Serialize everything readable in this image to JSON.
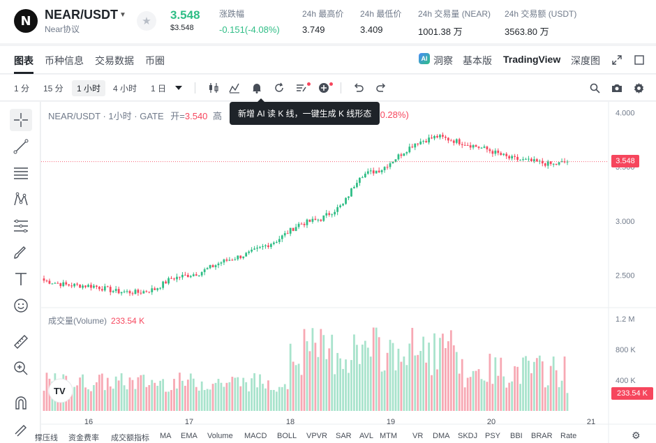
{
  "header": {
    "logo_letter": "N",
    "pair": "NEAR/USDT",
    "pair_sub": "Near协议",
    "price": "3.548",
    "price_usd": "$3.548",
    "stats": [
      {
        "label": "涨跌幅",
        "value": "-0.151(-4.08%)",
        "color": "green"
      },
      {
        "label": "24h 最高价",
        "value": "3.749"
      },
      {
        "label": "24h 最低价",
        "value": "3.409"
      },
      {
        "label": "24h 交易量 (NEAR)",
        "value": "1001.38 万"
      },
      {
        "label": "24h 交易额 (USDT)",
        "value": "3563.80 万"
      }
    ]
  },
  "tabs": [
    "图表",
    "币种信息",
    "交易数据",
    "币圈"
  ],
  "right_tabs": [
    "洞察",
    "基本版",
    "TradingView",
    "深度图"
  ],
  "ai_badge": "AI",
  "toolbar": {
    "timeframes": [
      "1 分",
      "15 分",
      "1 小时",
      "4 小时",
      "1 日"
    ],
    "active_timeframe": "1 小时"
  },
  "tooltip": "新增 AI 读 K 线，一键生成 K 线形态",
  "legend": {
    "symbol": "NEAR/USDT · 1小时 · GATE",
    "open_label": "开=",
    "open_value": "3.540",
    "high_hint": "高",
    "change": "+0.28%)",
    "volume_label": "成交量(Volume)",
    "volume_value": "233.54 K"
  },
  "current_price_tag": "3.548",
  "current_volume_tag": "233.54 K",
  "bottom_indicators": [
    "撑压线",
    "资金费率",
    "成交额指标",
    "MA",
    "EMA",
    "Volume",
    "MACD",
    "BOLL",
    "VPVR",
    "SAR",
    "AVL",
    "MTM",
    "VR",
    "DMA",
    "SKDJ",
    "PSY",
    "BBI",
    "BRAR",
    "Rate"
  ],
  "colors": {
    "up": "#2ebd85",
    "down": "#f6465d",
    "up_light": "#a8e3cc",
    "down_light": "#f7a8b3"
  },
  "chart_data": {
    "type": "candlestick",
    "price_axis": {
      "ticks": [
        "4.000",
        "3.500",
        "3.000",
        "2.500"
      ],
      "values": [
        4.0,
        3.5,
        3.0,
        2.5
      ],
      "ylim": [
        2.2,
        4.1
      ]
    },
    "volume_axis": {
      "ticks": [
        "1.2 M",
        "800 K",
        "400 K"
      ],
      "values": [
        1200,
        800,
        400
      ],
      "ylim": [
        0,
        1300
      ]
    },
    "x_ticks": [
      "16",
      "17",
      "18",
      "19",
      "20",
      "21"
    ],
    "last_price": 3.548,
    "waypoints": [
      {
        "i": 0,
        "p": 2.45
      },
      {
        "i": 8,
        "p": 2.41
      },
      {
        "i": 18,
        "p": 2.4
      },
      {
        "i": 26,
        "p": 2.35
      },
      {
        "i": 34,
        "p": 2.34
      },
      {
        "i": 40,
        "p": 2.37
      },
      {
        "i": 46,
        "p": 2.47
      },
      {
        "i": 56,
        "p": 2.52
      },
      {
        "i": 64,
        "p": 2.62
      },
      {
        "i": 74,
        "p": 2.7
      },
      {
        "i": 84,
        "p": 2.82
      },
      {
        "i": 92,
        "p": 2.97
      },
      {
        "i": 100,
        "p": 3.02
      },
      {
        "i": 108,
        "p": 3.15
      },
      {
        "i": 114,
        "p": 3.42
      },
      {
        "i": 122,
        "p": 3.48
      },
      {
        "i": 128,
        "p": 3.6
      },
      {
        "i": 134,
        "p": 3.72
      },
      {
        "i": 142,
        "p": 3.78
      },
      {
        "i": 150,
        "p": 3.73
      },
      {
        "i": 160,
        "p": 3.66
      },
      {
        "i": 168,
        "p": 3.58
      },
      {
        "i": 176,
        "p": 3.55
      },
      {
        "i": 184,
        "p": 3.52
      },
      {
        "i": 189,
        "p": 3.548
      }
    ],
    "candle_count": 190
  }
}
